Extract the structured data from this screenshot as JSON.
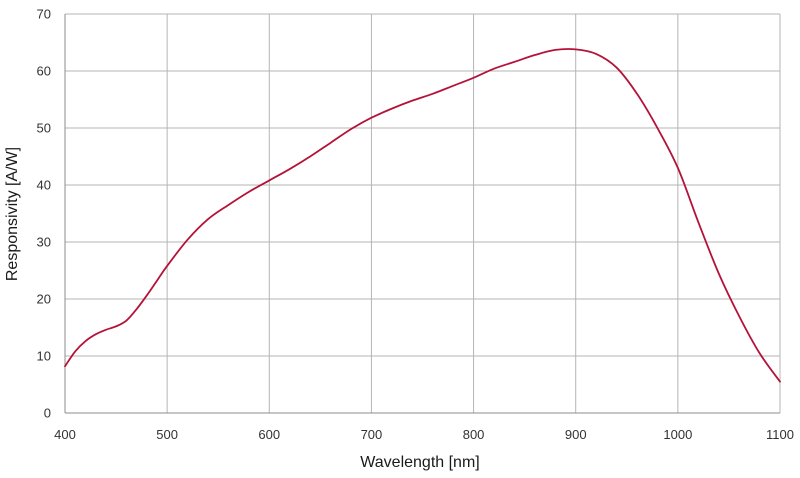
{
  "chart_data": {
    "type": "line",
    "title": "",
    "xlabel": "Wavelength [nm]",
    "ylabel": "Responsivity [A/W]",
    "xlim": [
      400,
      1100
    ],
    "ylim": [
      0,
      70
    ],
    "xticks": [
      400,
      500,
      600,
      700,
      800,
      900,
      1000,
      1100
    ],
    "yticks": [
      0,
      10,
      20,
      30,
      40,
      50,
      60,
      70
    ],
    "grid": true,
    "legend": "none",
    "series": [
      {
        "color": "#b5123a",
        "x": [
          400,
          410,
          420,
          430,
          440,
          450,
          460,
          470,
          480,
          490,
          500,
          520,
          540,
          560,
          580,
          600,
          620,
          640,
          660,
          680,
          700,
          720,
          740,
          760,
          780,
          800,
          820,
          840,
          860,
          880,
          900,
          920,
          940,
          960,
          980,
          1000,
          1020,
          1040,
          1060,
          1080,
          1100
        ],
        "y": [
          8.2,
          10.8,
          12.6,
          13.8,
          14.6,
          15.2,
          16.2,
          18.2,
          20.6,
          23.2,
          25.8,
          30.4,
          34.0,
          36.5,
          38.8,
          40.8,
          42.8,
          45.0,
          47.4,
          49.8,
          51.8,
          53.4,
          54.8,
          56.0,
          57.4,
          58.8,
          60.4,
          61.6,
          62.8,
          63.7,
          63.8,
          63.0,
          60.6,
          56.0,
          50.0,
          43.0,
          33.5,
          24.5,
          17.0,
          10.5,
          5.5
        ]
      }
    ]
  }
}
